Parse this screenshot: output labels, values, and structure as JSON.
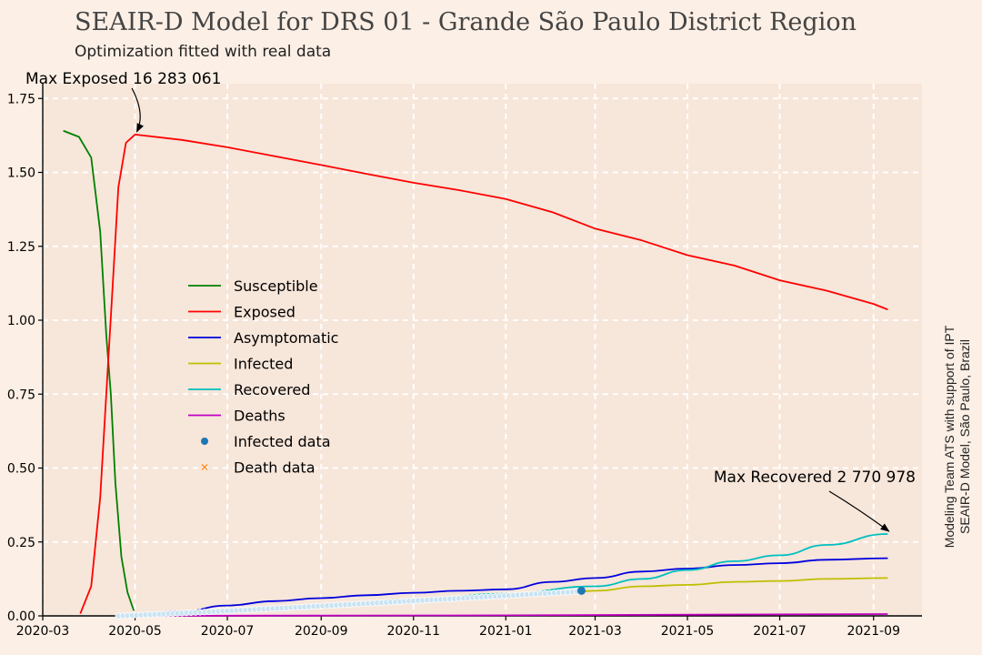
{
  "chart_data": {
    "type": "line",
    "title": "SEAIR-D Model for DRS 01 - Grande São Paulo District Region",
    "subtitle": "Optimization fitted with real data",
    "side_note_line1": "Modeling Team ATS with support of IPT",
    "side_note_line2": "SEAIR-D Model, São Paulo, Brazil",
    "x_start": "2020-03-01",
    "x_end": "2021-10-03",
    "xticks": [
      {
        "date": "2020-03-01",
        "label": "2020-03"
      },
      {
        "date": "2020-05-01",
        "label": "2020-05"
      },
      {
        "date": "2020-07-01",
        "label": "2020-07"
      },
      {
        "date": "2020-09-01",
        "label": "2020-09"
      },
      {
        "date": "2020-11-01",
        "label": "2020-11"
      },
      {
        "date": "2021-01-01",
        "label": "2021-01"
      },
      {
        "date": "2021-03-01",
        "label": "2021-03"
      },
      {
        "date": "2021-05-01",
        "label": "2021-05"
      },
      {
        "date": "2021-07-01",
        "label": "2021-07"
      },
      {
        "date": "2021-09-01",
        "label": "2021-09"
      }
    ],
    "ylim": [
      0,
      1.8
    ],
    "yticks": [
      {
        "value": 0.0,
        "label": "0.00"
      },
      {
        "value": 0.25,
        "label": "0.25"
      },
      {
        "value": 0.5,
        "label": "0.50"
      },
      {
        "value": 0.75,
        "label": "0.75"
      },
      {
        "value": 1.0,
        "label": "1.00"
      },
      {
        "value": 1.25,
        "label": "1.25"
      },
      {
        "value": 1.5,
        "label": "1.50"
      },
      {
        "value": 1.75,
        "label": "1.75"
      }
    ],
    "grid": true,
    "legend_position": "center-left",
    "series": [
      {
        "name": "Susceptible",
        "color": "#008000",
        "points": [
          [
            "2020-03-15",
            1.64
          ],
          [
            "2020-03-25",
            1.62
          ],
          [
            "2020-04-02",
            1.55
          ],
          [
            "2020-04-08",
            1.3
          ],
          [
            "2020-04-12",
            0.95
          ],
          [
            "2020-04-15",
            0.75
          ],
          [
            "2020-04-18",
            0.45
          ],
          [
            "2020-04-22",
            0.2
          ],
          [
            "2020-04-26",
            0.08
          ],
          [
            "2020-04-30",
            0.02
          ]
        ]
      },
      {
        "name": "Exposed",
        "color": "#ff0000",
        "points": [
          [
            "2020-03-26",
            0.01
          ],
          [
            "2020-04-02",
            0.1
          ],
          [
            "2020-04-08",
            0.4
          ],
          [
            "2020-04-12",
            0.75
          ],
          [
            "2020-04-16",
            1.1
          ],
          [
            "2020-04-20",
            1.45
          ],
          [
            "2020-04-25",
            1.6
          ],
          [
            "2020-05-01",
            1.628
          ],
          [
            "2020-06-01",
            1.61
          ],
          [
            "2020-07-01",
            1.585
          ],
          [
            "2020-08-01",
            1.555
          ],
          [
            "2020-09-01",
            1.525
          ],
          [
            "2020-10-01",
            1.495
          ],
          [
            "2020-11-01",
            1.465
          ],
          [
            "2020-12-01",
            1.44
          ],
          [
            "2021-01-01",
            1.41
          ],
          [
            "2021-02-01",
            1.365
          ],
          [
            "2021-03-01",
            1.31
          ],
          [
            "2021-04-01",
            1.27
          ],
          [
            "2021-05-01",
            1.22
          ],
          [
            "2021-06-01",
            1.185
          ],
          [
            "2021-07-01",
            1.135
          ],
          [
            "2021-08-01",
            1.1
          ],
          [
            "2021-09-01",
            1.055
          ],
          [
            "2021-09-10",
            1.037
          ]
        ]
      },
      {
        "name": "Asymptomatic",
        "color": "#0000dd",
        "points": [
          [
            "2020-04-20",
            0.0
          ],
          [
            "2020-06-01",
            0.015
          ],
          [
            "2020-07-01",
            0.035
          ],
          [
            "2020-08-01",
            0.05
          ],
          [
            "2020-09-01",
            0.06
          ],
          [
            "2020-10-01",
            0.07
          ],
          [
            "2020-11-01",
            0.078
          ],
          [
            "2020-12-01",
            0.085
          ],
          [
            "2021-01-01",
            0.09
          ],
          [
            "2021-02-01",
            0.115
          ],
          [
            "2021-03-01",
            0.128
          ],
          [
            "2021-04-01",
            0.15
          ],
          [
            "2021-05-01",
            0.16
          ],
          [
            "2021-06-01",
            0.172
          ],
          [
            "2021-07-01",
            0.178
          ],
          [
            "2021-08-01",
            0.19
          ],
          [
            "2021-09-10",
            0.195
          ]
        ]
      },
      {
        "name": "Infected",
        "color": "#bfbf00",
        "points": [
          [
            "2020-04-20",
            0.0
          ],
          [
            "2020-06-01",
            0.01
          ],
          [
            "2020-07-01",
            0.02
          ],
          [
            "2020-09-01",
            0.035
          ],
          [
            "2020-11-01",
            0.05
          ],
          [
            "2021-01-01",
            0.065
          ],
          [
            "2021-02-20",
            0.083
          ],
          [
            "2021-03-01",
            0.085
          ],
          [
            "2021-04-01",
            0.1
          ],
          [
            "2021-05-01",
            0.105
          ],
          [
            "2021-06-01",
            0.115
          ],
          [
            "2021-07-01",
            0.118
          ],
          [
            "2021-08-01",
            0.125
          ],
          [
            "2021-09-10",
            0.128
          ]
        ]
      },
      {
        "name": "Recovered",
        "color": "#00bfbf",
        "points": [
          [
            "2020-04-20",
            0.0
          ],
          [
            "2020-06-01",
            0.005
          ],
          [
            "2020-07-01",
            0.015
          ],
          [
            "2020-09-01",
            0.035
          ],
          [
            "2020-11-01",
            0.055
          ],
          [
            "2021-01-01",
            0.075
          ],
          [
            "2021-03-01",
            0.1
          ],
          [
            "2021-04-01",
            0.125
          ],
          [
            "2021-05-01",
            0.155
          ],
          [
            "2021-06-01",
            0.185
          ],
          [
            "2021-07-01",
            0.205
          ],
          [
            "2021-08-01",
            0.24
          ],
          [
            "2021-09-10",
            0.277
          ]
        ]
      },
      {
        "name": "Deaths",
        "color": "#bf00bf",
        "points": [
          [
            "2020-04-20",
            0.0
          ],
          [
            "2021-01-01",
            0.002
          ],
          [
            "2021-09-10",
            0.006
          ]
        ]
      }
    ],
    "scatter_series": [
      {
        "name": "Infected data",
        "color": "#1f77b4",
        "marker": "circle",
        "start": "2020-04-20",
        "end": "2021-02-20",
        "y_start": 0.0,
        "y_end": 0.083,
        "end_marker_y": 0.085
      },
      {
        "name": "Death data",
        "color": "#ff7f0e",
        "marker": "x"
      }
    ],
    "annotations": [
      {
        "text": "Max Exposed 16 283 061",
        "x": "2020-05-01",
        "y": 1.628
      },
      {
        "text": "Max Recovered 2 770 978",
        "x": "2021-09-10",
        "y": 0.277
      }
    ]
  }
}
